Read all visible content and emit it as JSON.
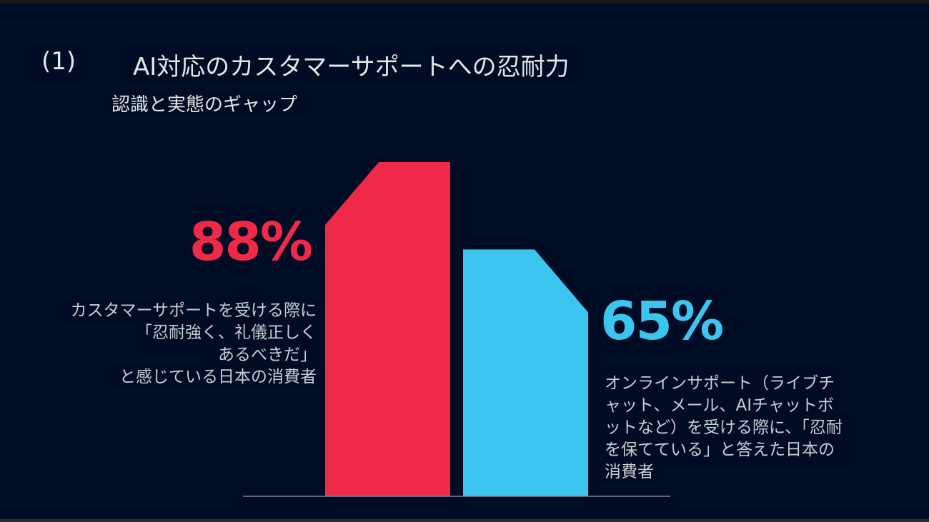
{
  "slide": {
    "title_number": "(1)",
    "title": "AI対応のカスタマーサポートへの忍耐力",
    "subtitle": "認識と実態のギャップ"
  },
  "chart_data": {
    "type": "bar",
    "ylim": [
      0,
      100
    ],
    "categories": [
      "カスタマーサポートを受ける際に「忍耐強く、礼儀正しくあるべきだ」と感じている日本の消費者",
      "オンラインサポート（ライブチャット、メール、AIチャットボットなど）を受ける際に、「忍耐を保てている」と答えた日本の消費者"
    ],
    "values": [
      88,
      65
    ],
    "colors": [
      "#ef2a48",
      "#3cc6ef"
    ],
    "data_labels": [
      "88%",
      "65%"
    ],
    "descriptions": [
      [
        "カスタマーサポートを受ける際に",
        "「忍耐強く、礼儀正しく",
        "あるべきだ」",
        "と感じている日本の消費者"
      ],
      "オンラインサポート（ライブチャット、メール、AIチャットボットなど）を受ける際に、「忍耐を保てている」と答えた日本の消費者"
    ]
  }
}
